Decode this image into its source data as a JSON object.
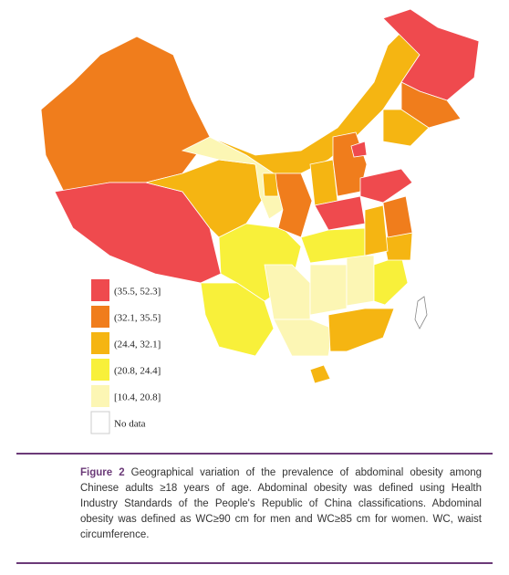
{
  "legend": [
    {
      "label": "(35.5, 52.3]",
      "color": "#ef4a4e"
    },
    {
      "label": "(32.1, 35.5]",
      "color": "#f07d1c"
    },
    {
      "label": "(24.4, 32.1]",
      "color": "#f5b512"
    },
    {
      "label": "(20.8, 24.4]",
      "color": "#f8f03a"
    },
    {
      "label": "[10.4, 20.8]",
      "color": "#fcf6b4"
    },
    {
      "label": "No data",
      "color": "#ffffff"
    }
  ],
  "caption": {
    "label": "Figure 2",
    "text": "Geographical variation of the prevalence of abdominal obesity among Chinese adults ≥18 years of age. Abdominal obesity was defined using Health Industry Standards of the People's Republic of China classifications. Abdominal obesity was defined as WC≥90 cm for men and WC≥85 cm for women. WC, waist circumference."
  }
}
